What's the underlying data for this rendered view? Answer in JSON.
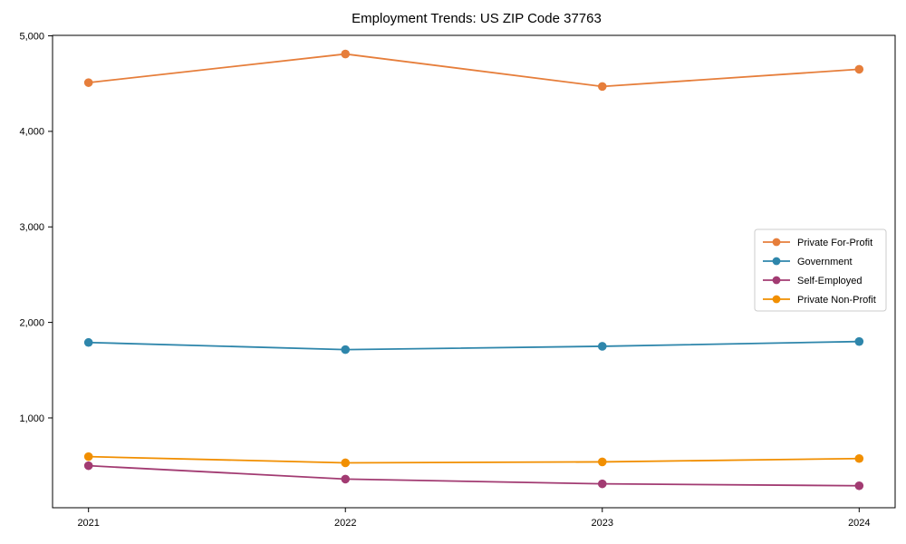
{
  "figure": {
    "background": "#ffffff"
  },
  "chart_data": {
    "type": "line",
    "title": "Employment Trends: US ZIP Code 37763",
    "xlabel": "",
    "ylabel": "",
    "x": [
      2021,
      2022,
      2023,
      2024
    ],
    "x_tick_labels": [
      "2021",
      "2022",
      "2023",
      "2024"
    ],
    "y_ticks": [
      1000,
      2000,
      3000,
      4000,
      5000
    ],
    "y_tick_labels": [
      "1,000",
      "2,000",
      "3,000",
      "4,000",
      "5,000"
    ],
    "xlim": [
      2020.86,
      2024.14
    ],
    "ylim": [
      60,
      5005
    ],
    "grid": false,
    "legend": {
      "position": "center-right",
      "border_color": "#cccccc",
      "background": "#ffffff"
    },
    "axis_color": "#000000",
    "text_color": "#000000",
    "series": [
      {
        "name": "Private For-Profit",
        "color": "#E67E3B",
        "values": [
          4510,
          4810,
          4470,
          4650
        ]
      },
      {
        "name": "Government",
        "color": "#2E86AB",
        "values": [
          1790,
          1715,
          1750,
          1800
        ]
      },
      {
        "name": "Self-Employed",
        "color": "#A23B72",
        "values": [
          500,
          360,
          310,
          290
        ]
      },
      {
        "name": "Private Non-Profit",
        "color": "#F18F01",
        "values": [
          595,
          530,
          540,
          575
        ]
      }
    ]
  }
}
